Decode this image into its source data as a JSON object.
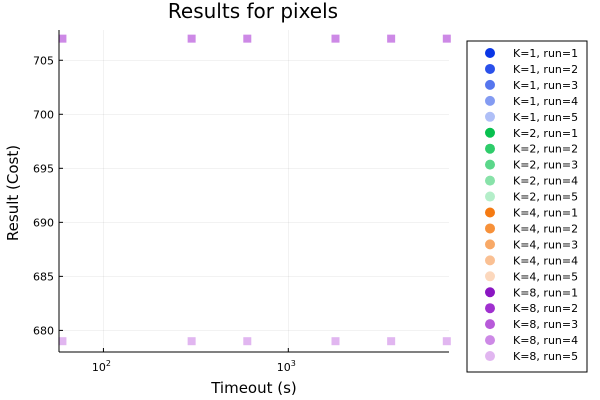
{
  "chart_data": {
    "type": "scatter",
    "title": "Results for pixels",
    "xlabel": "Timeout (s)",
    "ylabel": "Result (Cost)",
    "xscale": "log",
    "xlim": [
      57.5,
      7400
    ],
    "ylim": [
      678,
      707.8
    ],
    "grid": true,
    "legend_position": "right",
    "x_ticks": [
      {
        "value": 100,
        "base": "10",
        "exp": "2"
      },
      {
        "value": 1000,
        "base": "10",
        "exp": "3"
      }
    ],
    "y_ticks": [
      {
        "value": 680,
        "label": "680"
      },
      {
        "value": 685,
        "label": "685"
      },
      {
        "value": 690,
        "label": "690"
      },
      {
        "value": 695,
        "label": "695"
      },
      {
        "value": 700,
        "label": "700"
      },
      {
        "value": 705,
        "label": "705"
      }
    ],
    "series": [
      {
        "name": "K=1, run=1",
        "color": "#0a36e6",
        "x": [],
        "y": []
      },
      {
        "name": "K=1, run=2",
        "color": "#2a50ea",
        "x": [],
        "y": []
      },
      {
        "name": "K=1, run=3",
        "color": "#5676ee",
        "x": [],
        "y": []
      },
      {
        "name": "K=1, run=4",
        "color": "#839bf2",
        "x": [],
        "y": []
      },
      {
        "name": "K=1, run=5",
        "color": "#afbff7",
        "x": [],
        "y": []
      },
      {
        "name": "K=2, run=1",
        "color": "#08c04f",
        "x": [],
        "y": []
      },
      {
        "name": "K=2, run=2",
        "color": "#2ecc6a",
        "x": [],
        "y": []
      },
      {
        "name": "K=2, run=3",
        "color": "#5bd78a",
        "x": [],
        "y": []
      },
      {
        "name": "K=2, run=4",
        "color": "#88e2a9",
        "x": [],
        "y": []
      },
      {
        "name": "K=2, run=5",
        "color": "#b4eec9",
        "x": [],
        "y": []
      },
      {
        "name": "K=4, run=1",
        "color": "#f57a12",
        "x": [],
        "y": []
      },
      {
        "name": "K=4, run=2",
        "color": "#f7913a",
        "x": [],
        "y": []
      },
      {
        "name": "K=4, run=3",
        "color": "#f8a967",
        "x": [],
        "y": []
      },
      {
        "name": "K=4, run=4",
        "color": "#fac093",
        "x": [],
        "y": []
      },
      {
        "name": "K=4, run=5",
        "color": "#fcd8bd",
        "x": [],
        "y": []
      },
      {
        "name": "K=8, run=1",
        "color": "#8a16c2",
        "x": [],
        "y": []
      },
      {
        "name": "K=8, run=2",
        "color": "#a030cf",
        "x": [],
        "y": []
      },
      {
        "name": "K=8, run=3",
        "color": "#b75ad9",
        "x": [],
        "y": []
      },
      {
        "name": "K=8, run=4",
        "color": "#cd89e6",
        "x": [
          60,
          300,
          600,
          1800,
          3600,
          7200
        ],
        "y": [
          707,
          707,
          707,
          707,
          707,
          707
        ]
      },
      {
        "name": "K=8, run=5",
        "color": "#e1b6f0",
        "x": [
          60,
          300,
          600,
          1800,
          3600,
          7200
        ],
        "y": [
          679,
          679,
          679,
          679,
          679,
          679
        ]
      }
    ]
  }
}
